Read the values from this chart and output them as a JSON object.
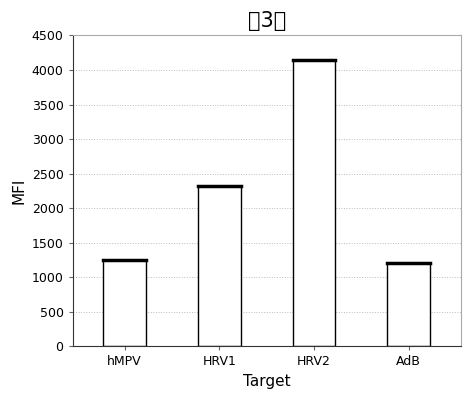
{
  "title": "第3组",
  "categories": [
    "hMPV",
    "HRV1",
    "HRV2",
    "AdB"
  ],
  "values": [
    1250,
    2320,
    4150,
    1200
  ],
  "bar_color": "#ffffff",
  "bar_edgecolor": "#000000",
  "xlabel": "Target",
  "ylabel": "MFI",
  "ylim": [
    0,
    4500
  ],
  "yticks": [
    0,
    500,
    1000,
    1500,
    2000,
    2500,
    3000,
    3500,
    4000,
    4500
  ],
  "title_fontsize": 15,
  "axis_fontsize": 11,
  "tick_fontsize": 9,
  "background_color": "#ffffff",
  "grid_color": "#bbbbbb"
}
